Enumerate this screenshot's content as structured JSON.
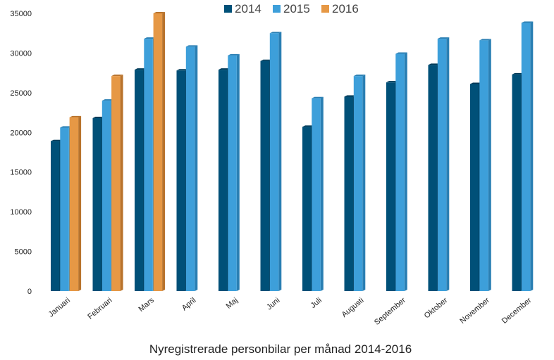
{
  "chart_data": {
    "type": "bar",
    "title": "",
    "xlabel": "Nyregistrerade personbilar per månad 2014-2016",
    "ylabel": "",
    "ylim": [
      0,
      35000
    ],
    "yticks": [
      0,
      5000,
      10000,
      15000,
      20000,
      25000,
      30000,
      35000
    ],
    "grid": false,
    "legend_position": "top-center",
    "categories": [
      "Januari",
      "Februari",
      "Mars",
      "April",
      "Maj",
      "Juni",
      "Juli",
      "Augusti",
      "September",
      "Oktober",
      "November",
      "December"
    ],
    "series": [
      {
        "name": "2014",
        "color": "#005078",
        "side_color": "#003a58",
        "values": [
          18900,
          21800,
          27900,
          27800,
          27900,
          29000,
          20700,
          24500,
          26300,
          28500,
          26100,
          27300
        ]
      },
      {
        "name": "2015",
        "color": "#3d9fda",
        "side_color": "#2a7fb3",
        "values": [
          20600,
          24000,
          31800,
          30800,
          29700,
          32500,
          24300,
          27100,
          29900,
          31800,
          31600,
          33800
        ]
      },
      {
        "name": "2016",
        "color": "#e69845",
        "side_color": "#b8732c",
        "values": [
          21900,
          27100,
          35000,
          null,
          null,
          null,
          null,
          null,
          null,
          null,
          null,
          null
        ]
      }
    ]
  }
}
